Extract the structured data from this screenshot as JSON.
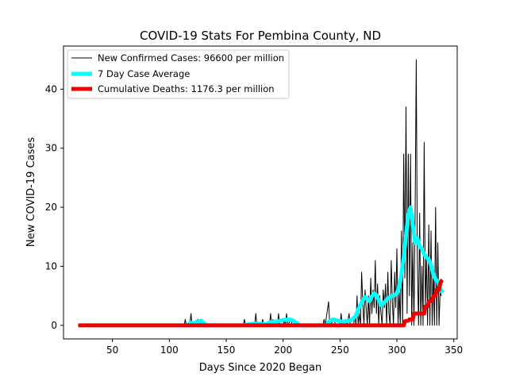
{
  "chart_data": {
    "type": "line",
    "title": "COVID-19 Stats For Pembina County, ND",
    "xlabel": "Days Since 2020 Began",
    "ylabel": "New COVID-19 Cases",
    "xlim": [
      7,
      353
    ],
    "ylim": [
      -2.3,
      47.3
    ],
    "x_ticks": [
      50,
      100,
      150,
      200,
      250,
      300,
      350
    ],
    "y_ticks": [
      0,
      10,
      20,
      30,
      40
    ],
    "grid": false,
    "legend_position": "top-left",
    "series": [
      {
        "name": "New Confirmed Cases: 96600 per million",
        "color": "#000000",
        "style": "thin",
        "points": [
          [
            20,
            0
          ],
          [
            113,
            0
          ],
          [
            114,
            1
          ],
          [
            115,
            0
          ],
          [
            118,
            0
          ],
          [
            119,
            2
          ],
          [
            120,
            0
          ],
          [
            124,
            0
          ],
          [
            125,
            1
          ],
          [
            126,
            0
          ],
          [
            127,
            1
          ],
          [
            128,
            0
          ],
          [
            133,
            0
          ],
          [
            165,
            0
          ],
          [
            166,
            1
          ],
          [
            167,
            0
          ],
          [
            175,
            0
          ],
          [
            176,
            2
          ],
          [
            177,
            0
          ],
          [
            181,
            0
          ],
          [
            182,
            1
          ],
          [
            183,
            0
          ],
          [
            188,
            0
          ],
          [
            189,
            2
          ],
          [
            190,
            0
          ],
          [
            191,
            1
          ],
          [
            192,
            0
          ],
          [
            195,
            0
          ],
          [
            196,
            2
          ],
          [
            197,
            0
          ],
          [
            200,
            0
          ],
          [
            201,
            1
          ],
          [
            202,
            0
          ],
          [
            203,
            2
          ],
          [
            204,
            0
          ],
          [
            207,
            1
          ],
          [
            208,
            0
          ],
          [
            235,
            0
          ],
          [
            236,
            1
          ],
          [
            237,
            0
          ],
          [
            240,
            4
          ],
          [
            241,
            0
          ],
          [
            245,
            1
          ],
          [
            246,
            0
          ],
          [
            250,
            0
          ],
          [
            251,
            2
          ],
          [
            252,
            0
          ],
          [
            255,
            1
          ],
          [
            256,
            0
          ],
          [
            258,
            2
          ],
          [
            259,
            0
          ],
          [
            262,
            0
          ],
          [
            263,
            2
          ],
          [
            264,
            0
          ],
          [
            265,
            5
          ],
          [
            266,
            0
          ],
          [
            267,
            2
          ],
          [
            268,
            0
          ],
          [
            269,
            9
          ],
          [
            270,
            4
          ],
          [
            271,
            0
          ],
          [
            272,
            6
          ],
          [
            273,
            3
          ],
          [
            274,
            0
          ],
          [
            275,
            5
          ],
          [
            276,
            0
          ],
          [
            277,
            8
          ],
          [
            278,
            2
          ],
          [
            279,
            6
          ],
          [
            280,
            3
          ],
          [
            281,
            11
          ],
          [
            282,
            2
          ],
          [
            283,
            7
          ],
          [
            284,
            0
          ],
          [
            285,
            5
          ],
          [
            286,
            2
          ],
          [
            287,
            0
          ],
          [
            288,
            6
          ],
          [
            289,
            3
          ],
          [
            290,
            7
          ],
          [
            291,
            0
          ],
          [
            292,
            9
          ],
          [
            293,
            2
          ],
          [
            294,
            0
          ],
          [
            295,
            11
          ],
          [
            296,
            4
          ],
          [
            297,
            0
          ],
          [
            298,
            9
          ],
          [
            299,
            3
          ],
          [
            300,
            13
          ],
          [
            301,
            0
          ],
          [
            302,
            6
          ],
          [
            303,
            0
          ],
          [
            304,
            16
          ],
          [
            305,
            0
          ],
          [
            306,
            29
          ],
          [
            307,
            8
          ],
          [
            308,
            37
          ],
          [
            309,
            2
          ],
          [
            310,
            29
          ],
          [
            311,
            5
          ],
          [
            312,
            29
          ],
          [
            313,
            0
          ],
          [
            314,
            14
          ],
          [
            315,
            0
          ],
          [
            316,
            19
          ],
          [
            317,
            45
          ],
          [
            318,
            11
          ],
          [
            319,
            0
          ],
          [
            320,
            19
          ],
          [
            321,
            0
          ],
          [
            322,
            10
          ],
          [
            323,
            0
          ],
          [
            324,
            31
          ],
          [
            325,
            3
          ],
          [
            326,
            12
          ],
          [
            327,
            0
          ],
          [
            328,
            17
          ],
          [
            329,
            0
          ],
          [
            330,
            16
          ],
          [
            331,
            0
          ],
          [
            332,
            10
          ],
          [
            333,
            0
          ],
          [
            334,
            20
          ],
          [
            335,
            0
          ],
          [
            336,
            14
          ],
          [
            337,
            0
          ],
          [
            338,
            6
          ],
          [
            339,
            5
          ]
        ]
      },
      {
        "name": "7 Day Case Average",
        "color": "#00ffff",
        "style": "thick",
        "points": [
          [
            116,
            0
          ],
          [
            118,
            0.4
          ],
          [
            122,
            0.4
          ],
          [
            124,
            0.6
          ],
          [
            126,
            0.6
          ],
          [
            128,
            0.8
          ],
          [
            130,
            0.4
          ],
          [
            132,
            0.1
          ],
          [
            134,
            0
          ],
          [
            165,
            0
          ],
          [
            170,
            0.2
          ],
          [
            175,
            0.3
          ],
          [
            180,
            0.3
          ],
          [
            185,
            0.2
          ],
          [
            188,
            0.5
          ],
          [
            192,
            0.6
          ],
          [
            196,
            0.7
          ],
          [
            200,
            0.9
          ],
          [
            204,
            1.0
          ],
          [
            208,
            0.9
          ],
          [
            212,
            0.4
          ],
          [
            214,
            0
          ],
          [
            238,
            0
          ],
          [
            240,
            0.6
          ],
          [
            244,
            1.0
          ],
          [
            248,
            0.8
          ],
          [
            252,
            0.6
          ],
          [
            256,
            0.7
          ],
          [
            260,
            0.9
          ],
          [
            264,
            1.6
          ],
          [
            266,
            2.7
          ],
          [
            268,
            3.5
          ],
          [
            270,
            4.2
          ],
          [
            272,
            4.8
          ],
          [
            274,
            4.5
          ],
          [
            276,
            4.1
          ],
          [
            278,
            4.9
          ],
          [
            280,
            5.4
          ],
          [
            282,
            5.1
          ],
          [
            284,
            4.3
          ],
          [
            286,
            3.4
          ],
          [
            288,
            3.7
          ],
          [
            290,
            4.1
          ],
          [
            292,
            4.6
          ],
          [
            294,
            4.8
          ],
          [
            296,
            5.0
          ],
          [
            298,
            5.1
          ],
          [
            300,
            5.4
          ],
          [
            302,
            6.5
          ],
          [
            304,
            8.8
          ],
          [
            306,
            11.5
          ],
          [
            308,
            15.2
          ],
          [
            310,
            18.8
          ],
          [
            312,
            20.0
          ],
          [
            314,
            17.0
          ],
          [
            316,
            14.0
          ],
          [
            318,
            14.8
          ],
          [
            320,
            13.3
          ],
          [
            322,
            13.0
          ],
          [
            324,
            12.0
          ],
          [
            326,
            11.5
          ],
          [
            328,
            11.2
          ],
          [
            330,
            10.2
          ],
          [
            332,
            8.7
          ],
          [
            334,
            7.8
          ],
          [
            336,
            7.4
          ],
          [
            338,
            6.3
          ],
          [
            340,
            5.5
          ]
        ]
      },
      {
        "name": "Cumulative Deaths: 1176.3 per million",
        "color": "#ee0000",
        "style": "thick",
        "points": [
          [
            20,
            0
          ],
          [
            306,
            0
          ],
          [
            307,
            0.7
          ],
          [
            310,
            0.8
          ],
          [
            311,
            1.0
          ],
          [
            314,
            1.0
          ],
          [
            315,
            2.0
          ],
          [
            324,
            2.0
          ],
          [
            325,
            3.2
          ],
          [
            327,
            3.2
          ],
          [
            328,
            4.0
          ],
          [
            331,
            4.2
          ],
          [
            332,
            5.0
          ],
          [
            334,
            5.0
          ],
          [
            335,
            6.0
          ],
          [
            337,
            6.0
          ],
          [
            338,
            7.0
          ],
          [
            339,
            7.5
          ],
          [
            340,
            7.7
          ]
        ]
      }
    ]
  }
}
